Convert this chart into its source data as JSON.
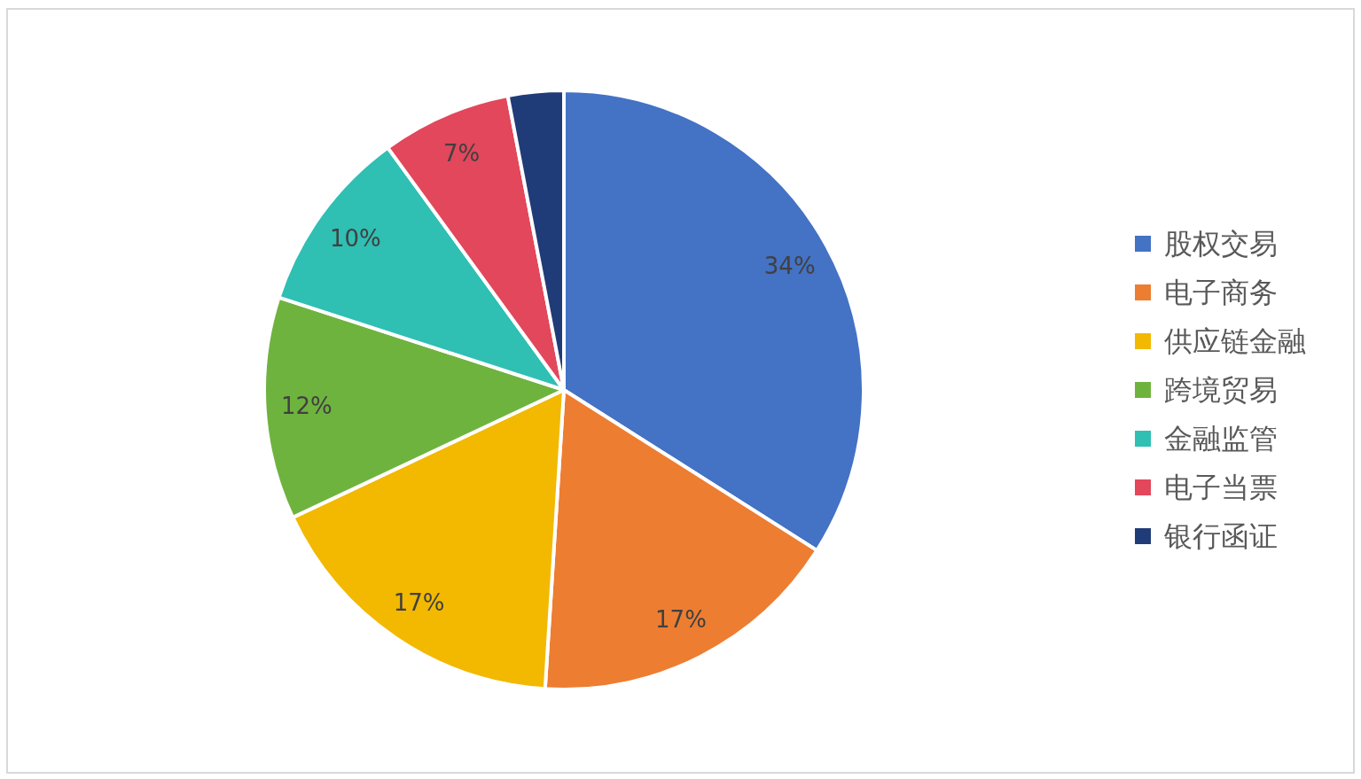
{
  "chart_data": {
    "type": "pie",
    "categories": [
      "股权交易",
      "电子商务",
      "供应链金融",
      "跨境贸易",
      "金融监管",
      "电子当票",
      "银行函证"
    ],
    "values": [
      34,
      17,
      17,
      12,
      10,
      7,
      3
    ],
    "colors": [
      "#4472c4",
      "#ed7d31",
      "#f2b900",
      "#6fb33f",
      "#2fbfb3",
      "#e2475c",
      "#203c78"
    ],
    "value_labels": [
      "34%",
      "17%",
      "17%",
      "12%",
      "10%",
      "7%",
      null
    ],
    "legend": "right"
  }
}
